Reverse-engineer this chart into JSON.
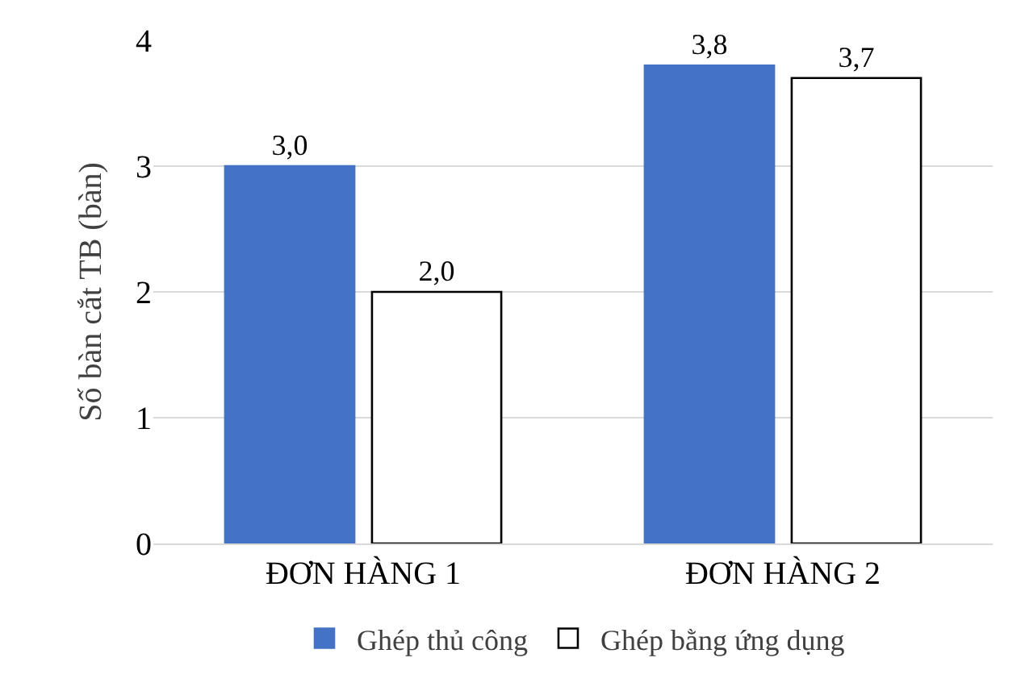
{
  "chart_data": {
    "type": "bar",
    "ylabel": "Số bàn cắt TB (bàn)",
    "categories": [
      "ĐƠN HÀNG 1",
      "ĐƠN HÀNG 2"
    ],
    "series": [
      {
        "name": "Ghép thủ công",
        "color": "#4472c4",
        "values": [
          3.0,
          3.8
        ],
        "value_labels": [
          "3,0",
          "3,8"
        ]
      },
      {
        "name": "Ghép bằng ứng dụng",
        "color": "#ffffff",
        "values": [
          2.0,
          3.7
        ],
        "value_labels": [
          "2,0",
          "3,7"
        ]
      }
    ],
    "ylim": [
      0,
      4
    ],
    "yticks": [
      0,
      1,
      2,
      3,
      4
    ],
    "grid": "y",
    "legend": "bottom"
  }
}
